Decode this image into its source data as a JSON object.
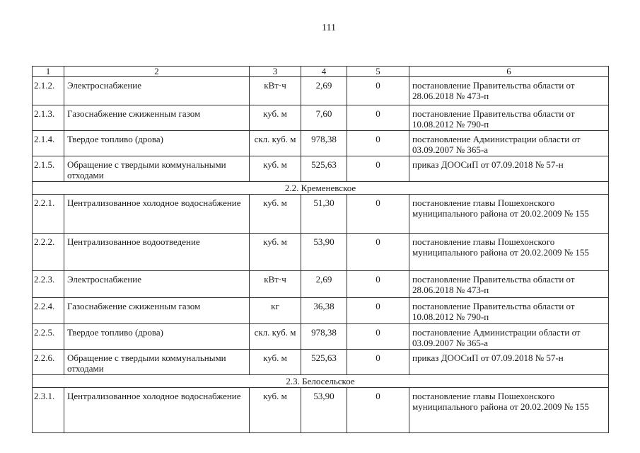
{
  "page_number": "111",
  "header": [
    "1",
    "2",
    "3",
    "4",
    "5",
    "6"
  ],
  "sections": [
    {
      "title": "",
      "rows": [
        {
          "num": "2.1.2.",
          "name": "Электроснабжение",
          "unit": "кВт·ч",
          "value": "2,69",
          "col5": "0",
          "basis": "постановление Правительства области от 28.06.2018 № 473-п"
        },
        {
          "num": "2.1.3.",
          "name": "Газоснабжение сжиженным газом",
          "unit": "куб. м",
          "value": "7,60",
          "col5": "0",
          "basis": "постановление Правительства области от 10.08.2012 № 790-п"
        },
        {
          "num": "2.1.4.",
          "name": "Твердое топливо (дрова)",
          "unit": "скл. куб. м",
          "value": "978,38",
          "col5": "0",
          "basis": "постановление Администрации области от 03.09.2007 № 365-а"
        },
        {
          "num": "2.1.5.",
          "name": "Обращение с твердыми коммунальными отходами",
          "unit": "куб. м",
          "value": "525,63",
          "col5": "0",
          "basis": "приказ ДООСиП от 07.09.2018 № 57-н"
        }
      ]
    },
    {
      "title": "2.2. Кременевское",
      "rows": [
        {
          "num": "2.2.1.",
          "name": "Централизованное холодное водоснабжение",
          "unit": "куб. м",
          "value": "51,30",
          "col5": "0",
          "basis": "постановление главы Пошехонского муниципального района от 20.02.2009 № 155"
        },
        {
          "num": "2.2.2.",
          "name": "Централизованное водоотведение",
          "unit": "куб. м",
          "value": "53,90",
          "col5": "0",
          "basis": "постановление главы Пошехонского муниципального района от 20.02.2009 № 155"
        },
        {
          "num": "2.2.3.",
          "name": "Электроснабжение",
          "unit": "кВт·ч",
          "value": "2,69",
          "col5": "0",
          "basis": "постановление Правительства области от 28.06.2018 № 473-п"
        },
        {
          "num": "2.2.4.",
          "name": "Газоснабжение сжиженным газом",
          "unit": "кг",
          "value": "36,38",
          "col5": "0",
          "basis": "постановление Правительства области от 10.08.2012 № 790-п"
        },
        {
          "num": "2.2.5.",
          "name": "Твердое топливо (дрова)",
          "unit": "скл. куб. м",
          "value": "978,38",
          "col5": "0",
          "basis": "постановление Администрации области от 03.09.2007 № 365-а"
        },
        {
          "num": "2.2.6.",
          "name": "Обращение с твердыми коммунальными отходами",
          "unit": "куб. м",
          "value": "525,63",
          "col5": "0",
          "basis": "приказ ДООСиП от 07.09.2018 № 57-н"
        }
      ]
    },
    {
      "title": "2.3. Белосельское",
      "rows": [
        {
          "num": "2.3.1.",
          "name": "Централизованное холодное водоснабжение",
          "unit": "куб. м",
          "value": "53,90",
          "col5": "0",
          "basis": "постановление главы Пошехонского муниципального района от 20.02.2009 № 155"
        }
      ]
    }
  ]
}
